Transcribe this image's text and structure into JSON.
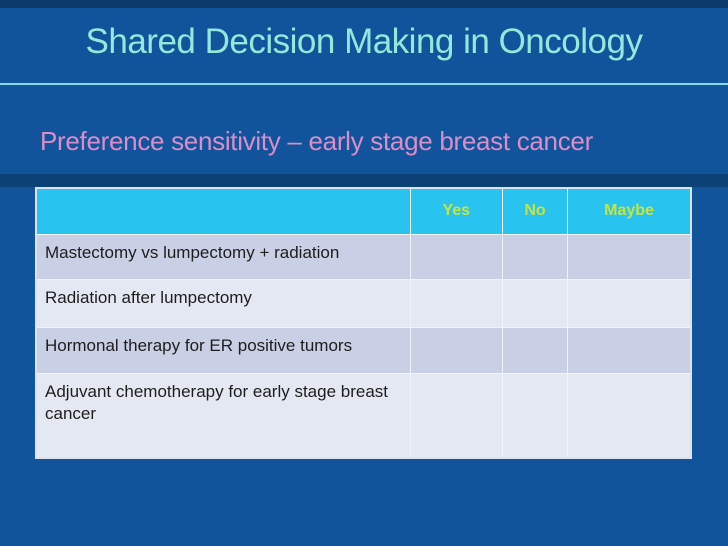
{
  "slide": {
    "title": "Shared Decision Making in Oncology",
    "subtitle": "Preference sensitivity – early stage breast cancer"
  },
  "table": {
    "header": {
      "label_column": "",
      "columns": [
        "Yes",
        "No",
        "Maybe"
      ]
    },
    "rows": [
      {
        "label": "Mastectomy vs lumpectomy + radiation",
        "yes": "",
        "no": "",
        "maybe": ""
      },
      {
        "label": "Radiation after lumpectomy",
        "yes": "",
        "no": "",
        "maybe": ""
      },
      {
        "label": "Hormonal therapy for ER positive tumors",
        "yes": "",
        "no": "",
        "maybe": ""
      },
      {
        "label": "Adjuvant chemotherapy for early stage breast cancer",
        "yes": "",
        "no": "",
        "maybe": ""
      }
    ]
  },
  "colors": {
    "bg": "#11549B",
    "top-stripe": "#0B3A6B",
    "title": "#92E8DB",
    "divider": "#8ED8E8",
    "subtitle": "#D98DC9",
    "shadow-band": "#0C4176",
    "header-bg": "#29C3F0",
    "header-text": "#C3E544",
    "row-dark": "#C9CFE4",
    "row-light": "#E4E8F2",
    "row-text": "#1E1E1E",
    "grid": "#F0F3F9",
    "outer-border": "#DCE2EE"
  }
}
